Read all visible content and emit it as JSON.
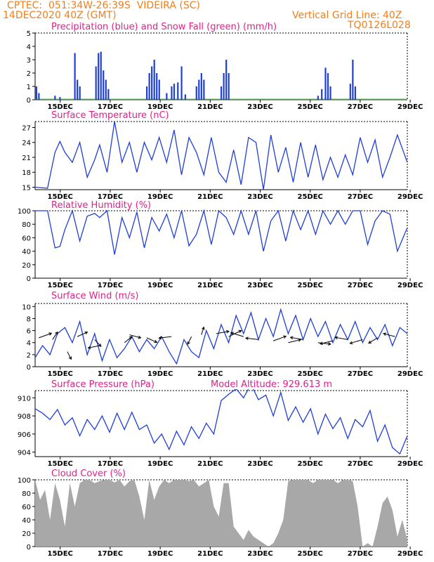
{
  "header": {
    "line1": "CPTEC:  051:34W-26:39S  VIDEIRA (SC)",
    "line2": "14DEC2020 40Z (GMT)",
    "grid_note": "Vertical Grid Line: 40Z",
    "code": "TQ0126L028"
  },
  "colors": {
    "header": "#f07f1e",
    "title": "#e0208c",
    "line": "#1f3fd6",
    "precip": "#1f3fd6",
    "snow": "#2db82d",
    "cloud": "#a8a8a8",
    "arrow": "#000000"
  },
  "chart_data": [
    {
      "type": "bar",
      "title": "Precipitation (blue) and Snow Fall (green) (mm/h)",
      "yticks": [
        0,
        1,
        2,
        3,
        4,
        5
      ],
      "ylim": [
        0,
        5
      ],
      "xlim": [
        0,
        15
      ],
      "xtick_labels": [
        "15DEC",
        "17DEC",
        "19DEC",
        "21DEC",
        "23DEC",
        "25DEC",
        "27DEC",
        "29DEC"
      ],
      "precip_events": [
        {
          "x": 0.05,
          "v": 1.0
        },
        {
          "x": 0.15,
          "v": 0.5
        },
        {
          "x": 0.8,
          "v": 0.3
        },
        {
          "x": 1.0,
          "v": 0.2
        },
        {
          "x": 1.6,
          "v": 3.5
        },
        {
          "x": 1.7,
          "v": 1.5
        },
        {
          "x": 1.8,
          "v": 1.0
        },
        {
          "x": 2.45,
          "v": 2.5
        },
        {
          "x": 2.55,
          "v": 3.5
        },
        {
          "x": 2.65,
          "v": 3.6
        },
        {
          "x": 2.75,
          "v": 2.2
        },
        {
          "x": 2.85,
          "v": 1.5
        },
        {
          "x": 2.95,
          "v": 0.8
        },
        {
          "x": 4.5,
          "v": 1.0
        },
        {
          "x": 4.6,
          "v": 2.0
        },
        {
          "x": 4.7,
          "v": 2.5
        },
        {
          "x": 4.8,
          "v": 3.0
        },
        {
          "x": 4.9,
          "v": 2.0
        },
        {
          "x": 5.0,
          "v": 1.5
        },
        {
          "x": 5.3,
          "v": 0.5
        },
        {
          "x": 5.5,
          "v": 1.0
        },
        {
          "x": 5.6,
          "v": 1.2
        },
        {
          "x": 5.75,
          "v": 1.3
        },
        {
          "x": 5.9,
          "v": 2.5
        },
        {
          "x": 6.05,
          "v": 0.4
        },
        {
          "x": 6.5,
          "v": 1.0
        },
        {
          "x": 6.6,
          "v": 1.5
        },
        {
          "x": 6.7,
          "v": 2.0
        },
        {
          "x": 6.8,
          "v": 1.5
        },
        {
          "x": 7.5,
          "v": 1.0
        },
        {
          "x": 7.6,
          "v": 2.0
        },
        {
          "x": 7.7,
          "v": 3.0
        },
        {
          "x": 7.8,
          "v": 2.0
        },
        {
          "x": 11.4,
          "v": 0.3
        },
        {
          "x": 11.55,
          "v": 0.8
        },
        {
          "x": 11.7,
          "v": 2.4
        },
        {
          "x": 11.8,
          "v": 2.0
        },
        {
          "x": 11.9,
          "v": 1.0
        },
        {
          "x": 12.7,
          "v": 1.2
        },
        {
          "x": 12.8,
          "v": 3.0
        },
        {
          "x": 12.9,
          "v": 1.0
        }
      ]
    },
    {
      "type": "line",
      "title": "Surface Temperature (nC)",
      "yticks": [
        15,
        18,
        21,
        24,
        27
      ],
      "ylim": [
        14.5,
        28.2
      ],
      "xlim": [
        0,
        15
      ],
      "xtick_labels": [
        "15DEC",
        "17DEC",
        "19DEC",
        "21DEC",
        "23DEC",
        "25DEC",
        "27DEC",
        "29DEC"
      ],
      "x": [
        0,
        0.5,
        0.8,
        1.0,
        1.2,
        1.5,
        1.8,
        2.1,
        2.4,
        2.6,
        2.9,
        3.2,
        3.5,
        3.8,
        4.1,
        4.4,
        4.7,
        5.0,
        5.3,
        5.6,
        5.9,
        6.2,
        6.5,
        6.8,
        7.1,
        7.4,
        7.7,
        8.0,
        8.3,
        8.6,
        8.9,
        9.2,
        9.5,
        9.8,
        10.1,
        10.4,
        10.7,
        11.0,
        11.3,
        11.6,
        11.9,
        12.2,
        12.5,
        12.8,
        13.1,
        13.4,
        13.7,
        14.0,
        14.3,
        14.6,
        15.0
      ],
      "y": [
        15,
        14.8,
        22,
        24.2,
        22,
        20,
        24,
        17,
        20.5,
        23.5,
        18,
        28.2,
        20,
        24,
        18,
        24,
        20.5,
        25,
        20,
        26.5,
        17.5,
        25,
        22,
        17.5,
        25,
        18,
        16,
        22.5,
        15.5,
        25,
        24,
        14.5,
        25.5,
        18,
        23,
        16,
        24,
        17,
        23.5,
        16.5,
        21,
        17,
        21.5,
        17.5,
        25,
        20,
        24.5,
        17,
        21,
        25.5,
        20
      ]
    },
    {
      "type": "line",
      "title": "Relative Humidity (%)",
      "yticks": [
        0,
        20,
        40,
        60,
        80,
        100
      ],
      "ylim": [
        0,
        100
      ],
      "xlim": [
        0,
        15
      ],
      "xtick_labels": [
        "15DEC",
        "17DEC",
        "19DEC",
        "21DEC",
        "23DEC",
        "25DEC",
        "27DEC",
        "29DEC"
      ],
      "x": [
        0,
        0.5,
        0.8,
        1.0,
        1.2,
        1.5,
        1.8,
        2.1,
        2.4,
        2.6,
        2.9,
        3.2,
        3.5,
        3.8,
        4.1,
        4.4,
        4.7,
        5.0,
        5.3,
        5.6,
        5.9,
        6.2,
        6.5,
        6.8,
        7.1,
        7.4,
        7.7,
        8.0,
        8.3,
        8.6,
        8.9,
        9.2,
        9.5,
        9.8,
        10.1,
        10.4,
        10.7,
        11.0,
        11.3,
        11.6,
        11.9,
        12.2,
        12.5,
        12.8,
        13.1,
        13.4,
        13.7,
        14.0,
        14.3,
        14.6,
        15.0
      ],
      "y": [
        100,
        100,
        45,
        47,
        72,
        100,
        55,
        92,
        96,
        90,
        100,
        35,
        90,
        60,
        98,
        45,
        90,
        70,
        95,
        60,
        100,
        48,
        65,
        100,
        50,
        100,
        90,
        65,
        100,
        65,
        100,
        40,
        85,
        100,
        55,
        100,
        72,
        100,
        65,
        100,
        80,
        100,
        80,
        100,
        100,
        50,
        85,
        100,
        95,
        40,
        75
      ]
    },
    {
      "type": "line",
      "title": "Surface Wind (m/s)",
      "yticks": [
        0,
        2,
        4,
        6,
        8,
        10
      ],
      "ylim": [
        0,
        10.5
      ],
      "xlim": [
        0,
        15
      ],
      "xtick_labels": [
        "15DEC",
        "17DEC",
        "19DEC",
        "21DEC",
        "23DEC",
        "25DEC",
        "27DEC",
        "29DEC"
      ],
      "x": [
        0,
        0.3,
        0.6,
        0.9,
        1.2,
        1.5,
        1.8,
        2.1,
        2.4,
        2.7,
        3.0,
        3.3,
        3.6,
        3.9,
        4.2,
        4.5,
        4.8,
        5.1,
        5.4,
        5.7,
        6.0,
        6.3,
        6.6,
        6.9,
        7.2,
        7.5,
        7.8,
        8.1,
        8.4,
        8.7,
        9.0,
        9.3,
        9.6,
        9.9,
        10.2,
        10.5,
        10.8,
        11.1,
        11.4,
        11.7,
        12.0,
        12.3,
        12.6,
        12.9,
        13.2,
        13.5,
        13.8,
        14.1,
        14.4,
        14.7,
        15.0
      ],
      "y": [
        1.5,
        3.5,
        2.0,
        5.5,
        6.5,
        4.0,
        7.5,
        2.0,
        5.5,
        1.0,
        4.5,
        1.5,
        3.0,
        5.0,
        2.5,
        4.5,
        3.0,
        5.0,
        2.5,
        0.5,
        4.5,
        2.5,
        1.5,
        6.0,
        3.0,
        7.0,
        4.0,
        8.5,
        5.5,
        9.0,
        4.5,
        8.0,
        5.0,
        9.5,
        5.5,
        8.5,
        4.5,
        8.0,
        5.0,
        7.5,
        4.0,
        7.0,
        4.5,
        7.5,
        4.0,
        6.5,
        4.5,
        7.0,
        3.5,
        6.5,
        5.5
      ],
      "arrows": [
        {
          "x": 0.15,
          "y": 4.8,
          "dx": 1,
          "dy": 0.6
        },
        {
          "x": 0.7,
          "y": 4.5,
          "dx": 0.4,
          "dy": 1
        },
        {
          "x": 1.3,
          "y": 2.5,
          "dx": 0.3,
          "dy": -1
        },
        {
          "x": 1.7,
          "y": 5.0,
          "dx": 0.8,
          "dy": 0.6
        },
        {
          "x": 2.4,
          "y": 4.5,
          "dx": 0.5,
          "dy": -0.9
        },
        {
          "x": 2.6,
          "y": 3.5,
          "dx": -0.9,
          "dy": -0.3
        },
        {
          "x": 3.6,
          "y": 4.0,
          "dx": 0.6,
          "dy": 0.8
        },
        {
          "x": 3.8,
          "y": 5.3,
          "dx": 0.9,
          "dy": -0.4
        },
        {
          "x": 4.5,
          "y": 4.8,
          "dx": 0.8,
          "dy": -0.6
        },
        {
          "x": 5.5,
          "y": 5.0,
          "dx": -1,
          "dy": -0.2
        },
        {
          "x": 6.3,
          "y": 5.0,
          "dx": -0.3,
          "dy": -1
        },
        {
          "x": 6.7,
          "y": 5.3,
          "dx": 0.2,
          "dy": 1
        },
        {
          "x": 7.3,
          "y": 5.5,
          "dx": 1,
          "dy": 0.3
        },
        {
          "x": 7.8,
          "y": 5.0,
          "dx": 1,
          "dy": 0.8
        },
        {
          "x": 8.4,
          "y": 5.0,
          "dx": -1,
          "dy": 0.5
        },
        {
          "x": 9.0,
          "y": 4.5,
          "dx": -1,
          "dy": 0.2
        },
        {
          "x": 9.6,
          "y": 4.3,
          "dx": 1,
          "dy": 0.6
        },
        {
          "x": 10.2,
          "y": 4.0,
          "dx": 1,
          "dy": 0.4
        },
        {
          "x": 10.8,
          "y": 4.5,
          "dx": -1,
          "dy": 0.3
        },
        {
          "x": 11.4,
          "y": 4.0,
          "dx": 1,
          "dy": -0.2
        },
        {
          "x": 12.0,
          "y": 4.3,
          "dx": -1,
          "dy": -0.4
        },
        {
          "x": 12.6,
          "y": 4.5,
          "dx": -1,
          "dy": 0.3
        },
        {
          "x": 13.2,
          "y": 4.5,
          "dx": -1,
          "dy": -0.5
        },
        {
          "x": 13.8,
          "y": 4.8,
          "dx": -0.7,
          "dy": -0.7
        },
        {
          "x": 14.5,
          "y": 5.0,
          "dx": -0.9,
          "dy": 0.4
        }
      ]
    },
    {
      "type": "line",
      "title": "Surface Pressure (hPa)",
      "annotation": "Model Altitude: 929.613 m",
      "yticks": [
        904,
        906,
        908,
        910
      ],
      "ylim": [
        903.5,
        910.8
      ],
      "xlim": [
        0,
        15
      ],
      "xtick_labels": [
        "15DEC",
        "17DEC",
        "19DEC",
        "21DEC",
        "23DEC",
        "25DEC",
        "27DEC",
        "29DEC"
      ],
      "x": [
        0,
        0.3,
        0.6,
        0.9,
        1.2,
        1.5,
        1.8,
        2.1,
        2.4,
        2.7,
        3.0,
        3.3,
        3.6,
        3.9,
        4.2,
        4.5,
        4.8,
        5.1,
        5.4,
        5.7,
        6.0,
        6.3,
        6.6,
        6.9,
        7.2,
        7.5,
        7.8,
        8.1,
        8.4,
        8.7,
        9.0,
        9.3,
        9.6,
        9.9,
        10.2,
        10.5,
        10.8,
        11.1,
        11.4,
        11.7,
        12.0,
        12.3,
        12.6,
        12.9,
        13.2,
        13.5,
        13.8,
        14.1,
        14.4,
        14.7,
        15.0
      ],
      "y": [
        908.8,
        908.3,
        907.6,
        908.7,
        907.0,
        907.8,
        905.8,
        907.6,
        906.5,
        908.0,
        906.2,
        908.3,
        906.5,
        908.4,
        906.5,
        907.0,
        905.0,
        906.0,
        904.3,
        906.3,
        904.8,
        906.8,
        905.5,
        907.2,
        906.0,
        909.7,
        910.4,
        911.0,
        910.0,
        911.5,
        909.8,
        910.3,
        908.0,
        910.6,
        907.5,
        909.0,
        907.3,
        908.8,
        906.0,
        908.2,
        906.6,
        907.8,
        905.5,
        907.6,
        906.8,
        908.6,
        905.2,
        907.0,
        904.5,
        903.8,
        905.8
      ]
    },
    {
      "type": "area",
      "title": "Cloud Cover (%)",
      "yticks": [
        0,
        20,
        40,
        60,
        80,
        100
      ],
      "ylim": [
        0,
        100
      ],
      "xlim": [
        0,
        15
      ],
      "xtick_labels": [
        "15DEC",
        "17DEC",
        "19DEC",
        "21DEC",
        "23DEC",
        "25DEC",
        "27DEC",
        "29DEC"
      ],
      "x": [
        0,
        0.2,
        0.4,
        0.6,
        0.8,
        1.0,
        1.2,
        1.4,
        1.6,
        1.8,
        2.0,
        2.2,
        2.4,
        2.6,
        2.8,
        3.0,
        3.2,
        3.4,
        3.6,
        3.8,
        4.0,
        4.2,
        4.4,
        4.6,
        4.8,
        5.0,
        5.2,
        5.4,
        5.6,
        5.8,
        6.0,
        6.2,
        6.4,
        6.6,
        6.8,
        7.0,
        7.2,
        7.4,
        7.6,
        7.8,
        8.0,
        8.2,
        8.4,
        8.6,
        8.8,
        9.0,
        9.2,
        9.4,
        9.6,
        9.8,
        10.0,
        10.2,
        10.4,
        10.6,
        10.8,
        11.0,
        11.2,
        11.4,
        11.6,
        11.8,
        12.0,
        12.2,
        12.4,
        12.6,
        12.8,
        13.0,
        13.2,
        13.4,
        13.6,
        13.8,
        14.0,
        14.2,
        14.4,
        14.6,
        14.8,
        15.0
      ],
      "y": [
        100,
        70,
        85,
        40,
        95,
        70,
        30,
        95,
        60,
        95,
        100,
        100,
        95,
        98,
        100,
        100,
        96,
        100,
        90,
        98,
        100,
        75,
        40,
        100,
        70,
        90,
        100,
        95,
        100,
        100,
        100,
        98,
        100,
        90,
        95,
        100,
        60,
        45,
        95,
        95,
        30,
        20,
        10,
        25,
        15,
        10,
        5,
        0,
        5,
        20,
        40,
        98,
        100,
        100,
        100,
        100,
        95,
        100,
        100,
        100,
        100,
        95,
        100,
        100,
        98,
        60,
        0,
        5,
        0,
        30,
        65,
        75,
        55,
        15,
        40,
        10
      ]
    }
  ]
}
